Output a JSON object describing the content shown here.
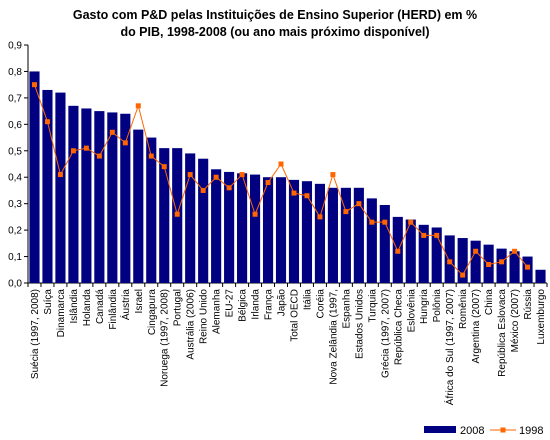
{
  "chart_data": {
    "type": "bar",
    "title_line1": "Gasto com P&D pelas Instituições de Ensino Superior (HERD) em %",
    "title_line2": "do PIB, 1998-2008 (ou ano mais próximo disponível)",
    "ylim": [
      0,
      0.9
    ],
    "yticks": [
      "0,0",
      "0,1",
      "0,2",
      "0,3",
      "0,4",
      "0,5",
      "0,6",
      "0,7",
      "0,8",
      "0,9"
    ],
    "grid": false,
    "legend_position": "bottom-right",
    "colors": {
      "bar": "#000080",
      "line": "#FF6600"
    },
    "categories": [
      "Suécia (1997, 2008)",
      "Suíça",
      "Dinamarca",
      "Islândia",
      "Holanda",
      "Canadá",
      "Finlândia",
      "Áustria",
      "Israel",
      "Cingapura",
      "Noruega (1997, 2008)",
      "Portugal",
      "Austrália (2006)",
      "Reino Unido",
      "Alemanha",
      "EU-27",
      "Bélgica",
      "Irlanda",
      "França",
      "Japão",
      "Total OECD",
      "Itália",
      "Coréia",
      "Nova Zelândia (1997,",
      "Espanha",
      "Estados Unidos",
      "Turquia",
      "Grécia (1997, 2007)",
      "República Checa",
      "Eslovênia",
      "Hungria",
      "Polônia",
      "África do Sul (1997, 2007)",
      "Romênia",
      "Argentina (2007)",
      "China",
      "República Eslovaca",
      "México (2007)",
      "Rússia",
      "Luxemburgo"
    ],
    "series": [
      {
        "name": "2008",
        "type": "bar",
        "values": [
          0.8,
          0.73,
          0.72,
          0.67,
          0.66,
          0.65,
          0.645,
          0.64,
          0.58,
          0.55,
          0.51,
          0.51,
          0.49,
          0.47,
          0.43,
          0.42,
          0.415,
          0.41,
          0.4,
          0.4,
          0.39,
          0.385,
          0.375,
          0.36,
          0.36,
          0.36,
          0.32,
          0.295,
          0.25,
          0.24,
          0.22,
          0.21,
          0.18,
          0.17,
          0.16,
          0.145,
          0.13,
          0.12,
          0.1,
          0.05
        ]
      },
      {
        "name": "1998",
        "type": "line",
        "values": [
          0.75,
          0.61,
          0.41,
          0.5,
          0.51,
          0.48,
          0.57,
          0.53,
          0.67,
          0.48,
          0.44,
          0.26,
          0.41,
          0.35,
          0.4,
          0.36,
          0.41,
          0.26,
          0.38,
          0.45,
          0.34,
          0.33,
          0.25,
          0.41,
          0.27,
          0.3,
          0.23,
          0.23,
          0.12,
          0.23,
          0.18,
          0.18,
          0.08,
          0.03,
          0.12,
          0.07,
          0.08,
          0.12,
          0.06,
          null
        ]
      }
    ]
  }
}
